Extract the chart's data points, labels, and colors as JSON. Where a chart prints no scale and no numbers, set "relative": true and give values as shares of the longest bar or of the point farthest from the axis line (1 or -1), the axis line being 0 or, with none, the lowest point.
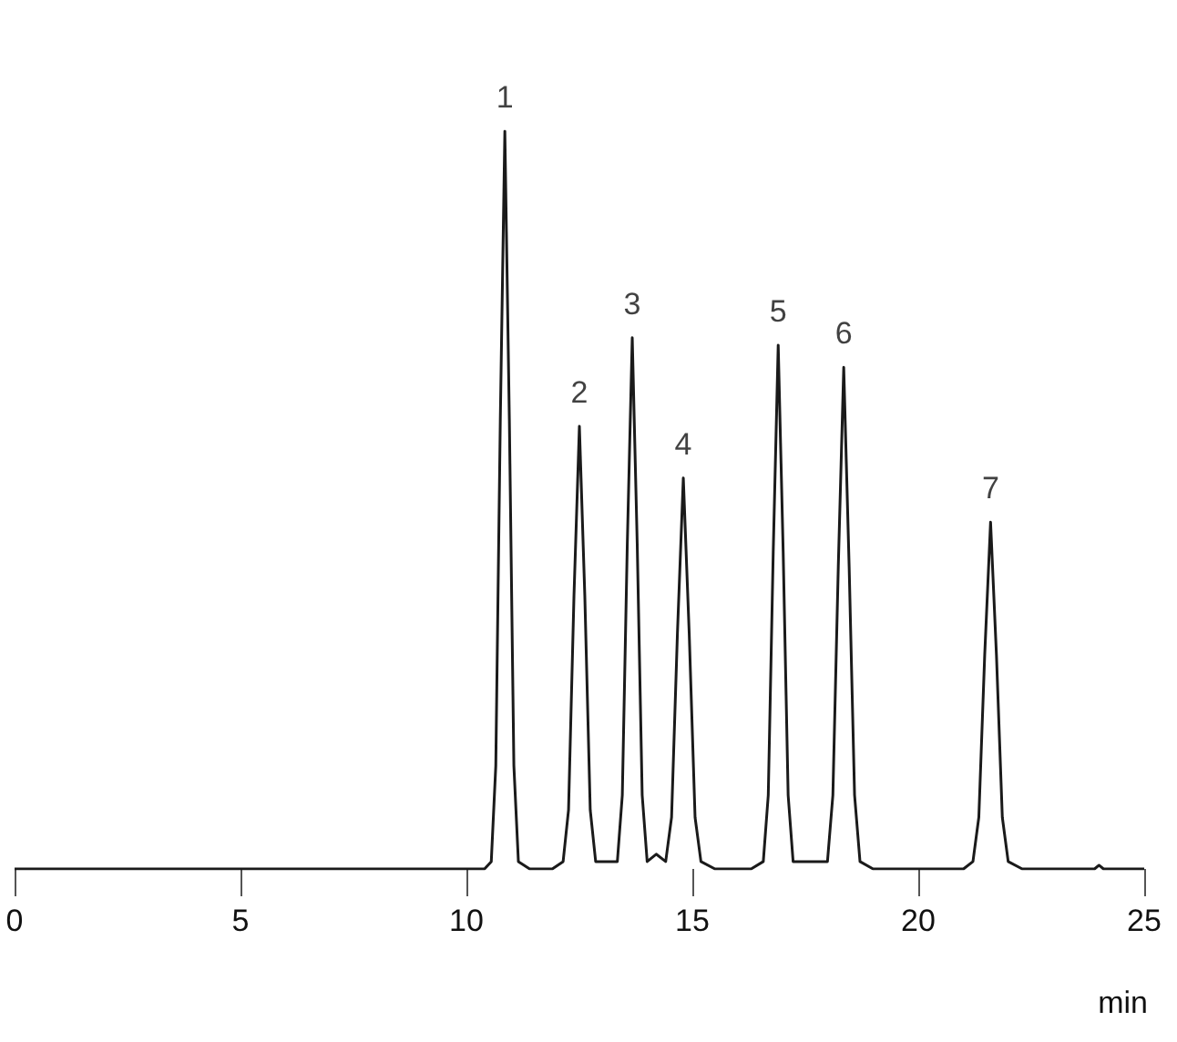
{
  "chart_data": {
    "type": "line",
    "relative": true,
    "xlabel": "min",
    "xlim": [
      0,
      25
    ],
    "xticks": [
      0,
      5,
      10,
      15,
      20,
      25
    ],
    "marker": "none",
    "line_style": "solid",
    "series": [
      {
        "color": "#1a1a1a",
        "x": [
          0,
          8.2,
          10.4,
          10.55,
          10.65,
          10.75,
          10.85,
          10.95,
          11.05,
          11.15,
          11.4,
          11.9,
          12.14,
          12.26,
          12.38,
          12.5,
          12.62,
          12.74,
          12.86,
          13.1,
          13.34,
          13.45,
          13.56,
          13.67,
          13.78,
          13.89,
          14.0,
          14.2,
          14.41,
          14.54,
          14.67,
          14.8,
          14.93,
          15.06,
          15.19,
          15.5,
          16.3,
          16.57,
          16.68,
          16.79,
          16.9,
          17.01,
          17.12,
          17.23,
          17.6,
          17.99,
          18.11,
          18.23,
          18.35,
          18.47,
          18.59,
          18.71,
          19.0,
          21.0,
          21.21,
          21.34,
          21.47,
          21.6,
          21.73,
          21.86,
          21.99,
          22.3,
          23.9,
          24.0,
          24.1,
          25
        ],
        "values": [
          0,
          0,
          0,
          0.01,
          0.14,
          0.61,
          1,
          0.61,
          0.14,
          0.01,
          0,
          0,
          0.01,
          0.08,
          0.37,
          0.6,
          0.37,
          0.08,
          0.01,
          0.01,
          0.01,
          0.1,
          0.44,
          0.72,
          0.44,
          0.1,
          0.01,
          0.02,
          0.01,
          0.07,
          0.32,
          0.53,
          0.32,
          0.07,
          0.01,
          0,
          0,
          0.01,
          0.1,
          0.43,
          0.71,
          0.43,
          0.1,
          0.01,
          0.01,
          0.01,
          0.1,
          0.41,
          0.68,
          0.41,
          0.1,
          0.01,
          0,
          0,
          0.01,
          0.07,
          0.29,
          0.47,
          0.29,
          0.07,
          0.01,
          0,
          0,
          0.005,
          0,
          0
        ]
      }
    ],
    "annotations": [
      {
        "text": "1",
        "x": 10.85,
        "y": 1
      },
      {
        "text": "2",
        "x": 12.5,
        "y": 0.6
      },
      {
        "text": "3",
        "x": 13.67,
        "y": 0.72
      },
      {
        "text": "4",
        "x": 14.8,
        "y": 0.53
      },
      {
        "text": "5",
        "x": 16.9,
        "y": 0.71
      },
      {
        "text": "6",
        "x": 18.35,
        "y": 0.68
      },
      {
        "text": "7",
        "x": 21.6,
        "y": 0.47
      }
    ]
  }
}
